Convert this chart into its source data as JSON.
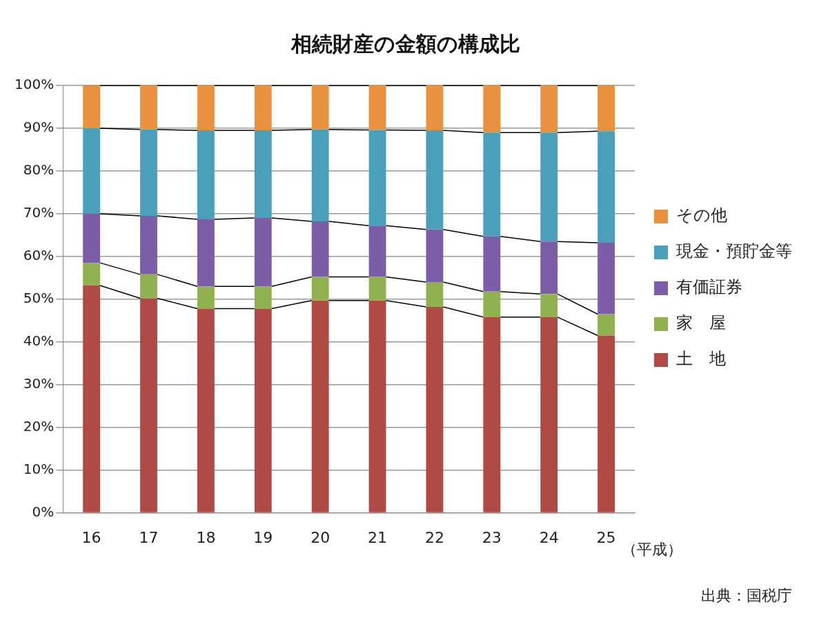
{
  "chart_data": {
    "type": "bar",
    "title": "相続財産の金額の構成比",
    "xlabel": "（平成）",
    "annotations": [
      "出典：国税庁"
    ],
    "categories": [
      "16",
      "17",
      "18",
      "19",
      "20",
      "21",
      "22",
      "23",
      "24",
      "25"
    ],
    "stacked": true,
    "grid": "y",
    "legend": "right",
    "ylim": [
      0,
      100
    ],
    "yticks": [
      {
        "value": 0,
        "label": "0%"
      },
      {
        "value": 10,
        "label": "10%"
      },
      {
        "value": 20,
        "label": "20%"
      },
      {
        "value": 30,
        "label": "30%"
      },
      {
        "value": 40,
        "label": "40%"
      },
      {
        "value": 50,
        "label": "50%"
      },
      {
        "value": 60,
        "label": "60%"
      },
      {
        "value": 70,
        "label": "70%"
      },
      {
        "value": 80,
        "label": "80%"
      },
      {
        "value": 90,
        "label": "90%"
      },
      {
        "value": 100,
        "label": "100%"
      }
    ],
    "series": [
      {
        "name": "土　地",
        "color": "#b04a45",
        "values": [
          53.2,
          50.2,
          47.8,
          47.8,
          49.7,
          49.7,
          48.2,
          45.8,
          45.8,
          41.5
        ]
      },
      {
        "name": "家　屋",
        "color": "#8fb14f",
        "values": [
          5.3,
          5.6,
          5.2,
          5.2,
          5.5,
          5.5,
          5.8,
          6.0,
          5.4,
          5.0
        ]
      },
      {
        "name": "有価証券",
        "color": "#7b5ea7",
        "values": [
          11.5,
          13.7,
          15.7,
          16.0,
          13.0,
          12.0,
          12.3,
          12.9,
          12.3,
          16.7
        ]
      },
      {
        "name": "現金・預貯金等",
        "color": "#4aa0b8",
        "values": [
          20.0,
          20.2,
          20.8,
          20.5,
          21.5,
          22.4,
          23.2,
          24.3,
          25.5,
          26.1
        ]
      },
      {
        "name": "その他",
        "color": "#e8913f",
        "values": [
          10.0,
          10.3,
          10.5,
          10.5,
          10.3,
          10.4,
          10.5,
          11.0,
          11.0,
          10.7
        ]
      }
    ]
  }
}
